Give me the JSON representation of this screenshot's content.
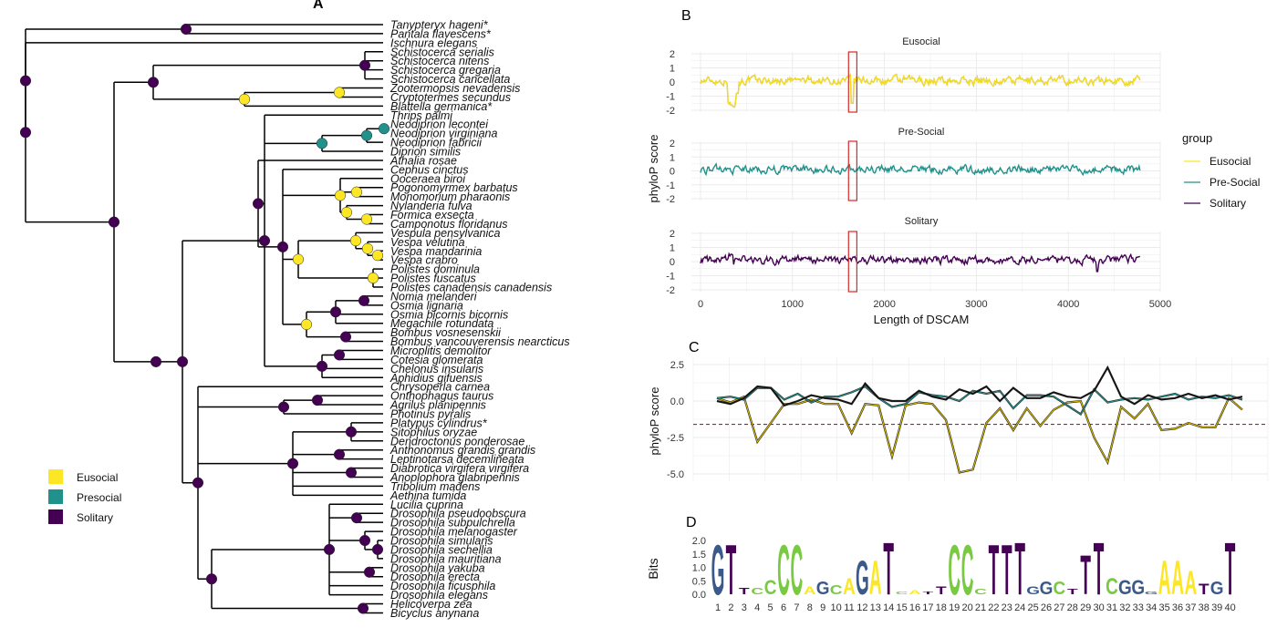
{
  "colors": {
    "eusocial": "#fde725",
    "presocial": "#21918c",
    "solitary": "#440154",
    "threshold": "#b2182b",
    "grid": "#ebebeb"
  },
  "panel_labels": [
    "A",
    "B",
    "C",
    "D"
  ],
  "tree": {
    "taxa": [
      "Tanypteryx hageni*",
      "Pantala flavescens*",
      "Ischnura elegans",
      "Schistocerca serialis",
      "Schistocerca nitens",
      "Schistocerca gregaria",
      "Schistocerca cancellata",
      "Zootermopsis nevadensis",
      "Cryptotermes secundus",
      "Blattella germanica*",
      "Thrips palmi",
      "Neodiprion lecontei",
      "Neodiprion virginiana",
      "Neodiprion fabricii",
      "Diprion similis",
      "Athalia rosae",
      "Cephus cinctus",
      "Ooceraea biroi",
      "Pogonomyrmex barbatus",
      "Monomorium pharaonis",
      "Nylanderia fulva",
      "Formica exsecta",
      "Camponotus floridanus",
      "Vespula pensylvanica",
      "Vespa velutina",
      "Vespa mandarinia",
      "Vespa crabro",
      "Polistes dominula",
      "Polistes fuscatus",
      "Polistes canadensis canadensis",
      "Nomia melanderi",
      "Osmia lignaria",
      "Osmia bicornis bicornis",
      "Megachile rotundata",
      "Bombus vosnesenskii",
      "Bombus vancouverensis nearcticus",
      "Microplitis demolitor",
      "Cotesia glomerata",
      "Chelonus insularis",
      "Aphidius gifuensis",
      "Chrysoperla carnea",
      "Onthophagus taurus",
      "Agrilus planipennis",
      "Photinus pyralis",
      "Platypus cylindrus*",
      "Sitophilus oryzae",
      "Dendroctonus ponderosae",
      "Anthonomus grandis grandis",
      "Leptinotarsa decemlineata",
      "Diabrotica virgifera virgifera",
      "Anoplophora glabripennis",
      "Tribolium madens",
      "Aethina tumida",
      "Lucilia cuprina",
      "Drosophila pseudoobscura",
      "Drosophila subpulchrella",
      "Drosophila melanogaster",
      "Drosophila simulans",
      "Drosophila sechellia",
      "Drosophila mauritiana",
      "Drosophila yakuba",
      "Drosophila erecta",
      "Drosophila ficusphila",
      "Drosophila elegans",
      "Helicoverpa zea",
      "Bicyclus anynana"
    ],
    "legend": [
      {
        "label": "Eusocial",
        "state": "eusocial"
      },
      {
        "label": "Presocial",
        "state": "presocial"
      },
      {
        "label": "Solitary",
        "state": "solitary"
      }
    ]
  },
  "chart_data": [
    {
      "panel": "B",
      "type": "line",
      "facets": [
        "Eusocial",
        "Pre-Social",
        "Solitary"
      ],
      "xlabel": "Length of DSCAM",
      "ylabel": "phyloP score",
      "xlim": [
        0,
        5000
      ],
      "ylim": [
        -2,
        2
      ],
      "x_ticks": [
        0,
        1000,
        2000,
        3000,
        4000,
        5000
      ],
      "y_ticks": [
        2,
        1,
        0,
        -1,
        -2
      ],
      "legend_title": "group",
      "series": [
        {
          "name": "Eusocial",
          "color": "#fde725"
        },
        {
          "name": "Pre-Social",
          "color": "#21918c"
        },
        {
          "name": "Solitary",
          "color": "#440154"
        }
      ],
      "highlight_x_range": [
        1610,
        1700
      ]
    },
    {
      "panel": "C",
      "type": "line",
      "ylabel": "phyloP score",
      "ylim": [
        -5,
        2.5
      ],
      "y_ticks": [
        "2.5",
        "0.0",
        "-2.5",
        "-5.0"
      ],
      "threshold": -1.6,
      "x": [
        1,
        2,
        3,
        4,
        5,
        6,
        7,
        8,
        9,
        10,
        11,
        12,
        13,
        14,
        15,
        16,
        17,
        18,
        19,
        20,
        21,
        22,
        23,
        24,
        25,
        26,
        27,
        28,
        29,
        30,
        31,
        32,
        33,
        34,
        35,
        36,
        37,
        38,
        39,
        40
      ],
      "series": [
        {
          "name": "Eusocial",
          "values": [
            0.2,
            -0.1,
            0.3,
            -2.8,
            -1.5,
            -0.2,
            -0.2,
            0.1,
            -0.2,
            -0.2,
            -2.2,
            -0.2,
            -0.3,
            -3.8,
            -0.3,
            -0.1,
            -0.2,
            -1.3,
            -4.9,
            -4.7,
            -1.5,
            -0.5,
            -2.0,
            -0.5,
            -1.7,
            -0.6,
            -0.1,
            0.0,
            -2.5,
            -4.2,
            -0.4,
            -1.2,
            -0.2,
            -2.0,
            -1.9,
            -1.5,
            -1.8,
            -1.8,
            0.2,
            -0.6
          ]
        },
        {
          "name": "Pre-Social",
          "values": [
            0.2,
            0.3,
            0.1,
            0.9,
            0.9,
            0.1,
            0.5,
            -0.1,
            0.3,
            0.3,
            0.6,
            1.0,
            0.2,
            -0.4,
            -0.2,
            0.6,
            0.4,
            0.3,
            0.0,
            0.7,
            0.5,
            0.7,
            -0.5,
            0.4,
            0.4,
            0.3,
            -0.3,
            -0.9,
            0.8,
            -0.1,
            0.1,
            0.2,
            0.1,
            0.3,
            0.5,
            0.1,
            0.3,
            0.2,
            0.4,
            0.1
          ]
        },
        {
          "name": "Solitary",
          "values": [
            0.0,
            -0.2,
            0.2,
            1.0,
            0.9,
            -0.3,
            0.0,
            0.4,
            0.2,
            0.1,
            -0.2,
            1.2,
            0.2,
            0.0,
            0.0,
            0.7,
            0.3,
            0.1,
            0.8,
            0.5,
            1.0,
            0.0,
            0.9,
            0.2,
            0.2,
            0.6,
            0.3,
            0.2,
            0.7,
            2.3,
            0.3,
            -0.2,
            0.4,
            0.1,
            0.2,
            0.5,
            0.2,
            0.4,
            0.1,
            0.3
          ]
        }
      ]
    },
    {
      "panel": "D",
      "type": "sequence_logo",
      "ylabel": "Bits",
      "ylim": [
        0,
        2
      ],
      "y_ticks": [
        "2.0",
        "1.5",
        "1.0",
        "0.5",
        "0.0"
      ],
      "positions": [
        "1",
        "2",
        "3",
        "4",
        "5",
        "6",
        "7",
        "8",
        "9",
        "10",
        "11",
        "12",
        "13",
        "14",
        "15",
        "16",
        "17",
        "18",
        "19",
        "20",
        "21",
        "22",
        "23",
        "24",
        "25",
        "26",
        "27",
        "28",
        "29",
        "30",
        "31",
        "32",
        "33",
        "34",
        "35",
        "36",
        "37",
        "38",
        "39",
        "40"
      ],
      "letters": [
        "G",
        "T",
        "T",
        "C",
        "C",
        "C",
        "C",
        "A",
        "G",
        "C",
        "A",
        "G",
        "A",
        "T",
        "C",
        "A",
        "T",
        "T",
        "C",
        "C",
        "C",
        "T",
        "T",
        "T",
        "G",
        "G",
        "C",
        "T",
        "T",
        "T",
        "C",
        "G",
        "G",
        "G",
        "A",
        "A",
        "A",
        "T",
        "G",
        "T"
      ],
      "bits": [
        1.9,
        1.9,
        0.25,
        0.25,
        0.55,
        1.9,
        1.9,
        0.3,
        0.5,
        0.35,
        0.6,
        1.3,
        1.3,
        2.0,
        0.1,
        0.15,
        0.1,
        0.3,
        1.9,
        1.9,
        0.2,
        1.9,
        1.9,
        2.0,
        0.3,
        0.5,
        0.5,
        0.2,
        1.5,
        2.0,
        0.6,
        0.55,
        0.55,
        0.1,
        1.3,
        1.3,
        0.9,
        0.4,
        0.5,
        2.0
      ]
    }
  ]
}
